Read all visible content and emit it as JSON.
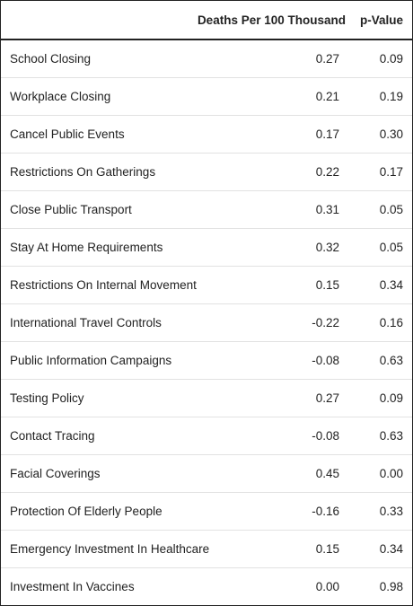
{
  "table": {
    "columns": {
      "name": "",
      "deaths": "Deaths Per 100 Thousand",
      "pvalue": "p-Value"
    },
    "rows": [
      {
        "name": "School Closing",
        "deaths": "0.27",
        "pvalue": "0.09"
      },
      {
        "name": "Workplace Closing",
        "deaths": "0.21",
        "pvalue": "0.19"
      },
      {
        "name": "Cancel Public Events",
        "deaths": "0.17",
        "pvalue": "0.30"
      },
      {
        "name": "Restrictions On Gatherings",
        "deaths": "0.22",
        "pvalue": "0.17"
      },
      {
        "name": "Close Public Transport",
        "deaths": "0.31",
        "pvalue": "0.05"
      },
      {
        "name": "Stay At Home Requirements",
        "deaths": "0.32",
        "pvalue": "0.05"
      },
      {
        "name": "Restrictions On Internal Movement",
        "deaths": "0.15",
        "pvalue": "0.34"
      },
      {
        "name": "International Travel Controls",
        "deaths": "-0.22",
        "pvalue": "0.16"
      },
      {
        "name": "Public Information Campaigns",
        "deaths": "-0.08",
        "pvalue": "0.63"
      },
      {
        "name": "Testing Policy",
        "deaths": "0.27",
        "pvalue": "0.09"
      },
      {
        "name": "Contact Tracing",
        "deaths": "-0.08",
        "pvalue": "0.63"
      },
      {
        "name": "Facial Coverings",
        "deaths": "0.45",
        "pvalue": "0.00"
      },
      {
        "name": "Protection Of Elderly People",
        "deaths": "-0.16",
        "pvalue": "0.33"
      },
      {
        "name": "Emergency Investment In Healthcare",
        "deaths": "0.15",
        "pvalue": "0.34"
      },
      {
        "name": "Investment In Vaccines",
        "deaths": "0.00",
        "pvalue": "0.98"
      }
    ]
  },
  "colors": {
    "text": "#222222",
    "rule": "#222222",
    "row_divider": "#e2e2e2",
    "background": "#ffffff"
  }
}
